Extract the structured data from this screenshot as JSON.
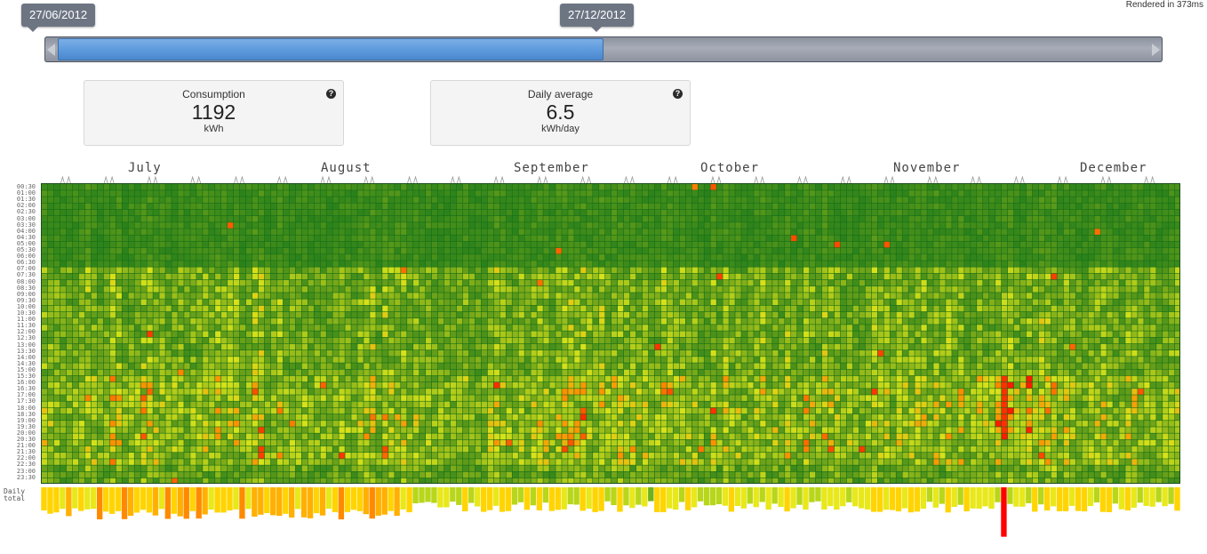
{
  "render_time": "Rendered in 373ms",
  "range": {
    "start": "27/06/2012",
    "end": "27/12/2012",
    "selected_fraction": [
      0.0,
      0.49
    ]
  },
  "stats": [
    {
      "label": "Consumption",
      "value": "1192",
      "unit": "kWh",
      "help": "?"
    },
    {
      "label": "Daily average",
      "value": "6.5",
      "unit": "kWh/day",
      "help": "?"
    }
  ],
  "months": [
    "July",
    "August",
    "September",
    "October",
    "November",
    "December"
  ],
  "hours": [
    "00:30",
    "01:00",
    "01:30",
    "02:00",
    "02:30",
    "03:00",
    "03:30",
    "04:00",
    "04:30",
    "05:00",
    "05:30",
    "06:00",
    "06:30",
    "07:00",
    "07:30",
    "08:00",
    "08:30",
    "09:00",
    "09:30",
    "10:00",
    "10:30",
    "11:00",
    "11:30",
    "12:00",
    "12:30",
    "13:00",
    "13:30",
    "14:00",
    "14:30",
    "15:00",
    "15:30",
    "16:00",
    "16:30",
    "17:00",
    "17:30",
    "18:00",
    "18:30",
    "19:00",
    "19:30",
    "20:00",
    "20:30",
    "21:00",
    "21:30",
    "22:00",
    "22:30",
    "23:00",
    "23:30"
  ],
  "daily_label": [
    "Daily",
    "total"
  ],
  "colors": {
    "low": "#1a7a1a",
    "mid": "#d8e21a",
    "high": "#ff8a00",
    "peak": "#ff0000"
  },
  "chart_data": {
    "type": "heatmap",
    "x_start": "2012-06-27",
    "x_end": "2012-12-27",
    "y": "half-hour slots 00:30 to 23:30",
    "daily_totals_shown": true
  }
}
